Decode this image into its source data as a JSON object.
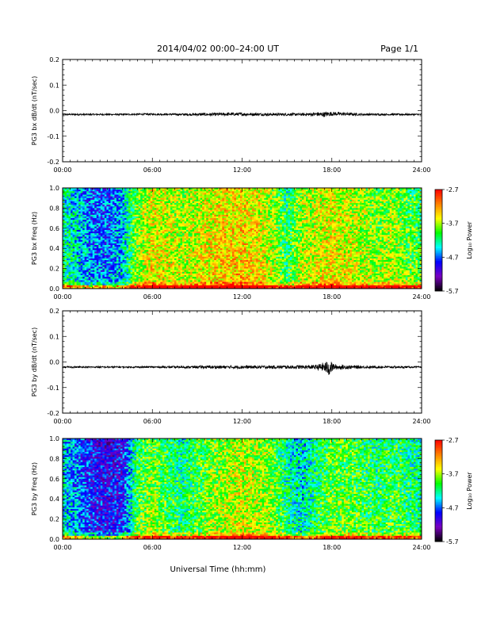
{
  "header": {
    "title": "2014/04/02  00:00–24:00 UT",
    "page": "Page 1/1"
  },
  "xaxis": {
    "label": "Universal Time (hh:mm)",
    "ticks": [
      "00:00",
      "06:00",
      "12:00",
      "18:00",
      "24:00"
    ],
    "range_hours": [
      0,
      24
    ]
  },
  "colorbar": {
    "label": "Log₁₀ Power",
    "ticks": [
      "-2.7",
      "-3.7",
      "-4.7",
      "-5.7"
    ],
    "range": [
      -5.7,
      -2.7
    ],
    "colors": [
      "#000000",
      "#7a00c0",
      "#0000ff",
      "#00ffff",
      "#00ff00",
      "#ffff00",
      "#ff8000",
      "#ff0000"
    ]
  },
  "chart_data": [
    {
      "type": "line",
      "ylabel": "PG3 bx dB/dt (nT/sec)",
      "ylim": [
        -0.2,
        0.2
      ],
      "yticks": [
        "0.2",
        "0.1",
        "0.0",
        "-0.1",
        "-0.2"
      ],
      "x_hours": [
        0,
        2,
        4,
        6,
        8,
        10,
        11,
        12,
        14,
        16,
        17,
        17.5,
        18,
        20,
        22,
        24
      ],
      "y": [
        -0.015,
        -0.015,
        -0.015,
        -0.014,
        -0.015,
        -0.015,
        -0.014,
        -0.014,
        -0.015,
        -0.015,
        -0.014,
        -0.015,
        -0.012,
        -0.015,
        -0.015,
        -0.015
      ],
      "noise_amp_hours": [
        0,
        4,
        8,
        10,
        12,
        14,
        16,
        17,
        17.5,
        18,
        20,
        24
      ],
      "noise_amp": [
        0.003,
        0.003,
        0.004,
        0.006,
        0.006,
        0.005,
        0.005,
        0.008,
        0.01,
        0.008,
        0.004,
        0.003
      ]
    },
    {
      "type": "heatmap",
      "ylabel": "PG3 bx Freq (Hz)",
      "ylim": [
        0,
        1
      ],
      "yticks": [
        "1.0",
        "0.8",
        "0.6",
        "0.4",
        "0.2",
        "0.0"
      ],
      "zlim": [
        -5.7,
        -2.7
      ],
      "activity_hours": [
        0,
        1,
        2,
        3,
        4,
        5,
        6,
        7,
        8,
        9,
        10,
        11,
        12,
        13,
        14,
        15,
        16,
        17,
        18,
        19,
        20,
        21,
        22,
        23,
        24
      ],
      "activity_log_power": [
        -4.2,
        -4.4,
        -4.7,
        -4.7,
        -4.5,
        -3.8,
        -3.5,
        -3.6,
        -3.7,
        -3.6,
        -3.5,
        -3.4,
        -3.4,
        -3.5,
        -3.7,
        -4.1,
        -3.7,
        -3.6,
        -3.5,
        -3.6,
        -3.7,
        -3.8,
        -3.7,
        -3.9,
        -4.0
      ]
    },
    {
      "type": "line",
      "ylabel": "PG3 by dB/dt (nT/sec)",
      "ylim": [
        -0.2,
        0.2
      ],
      "yticks": [
        "0.2",
        "0.1",
        "0.0",
        "-0.1",
        "-0.2"
      ],
      "x_hours": [
        0,
        2,
        4,
        6,
        8,
        10,
        12,
        14,
        16,
        17,
        17.5,
        17.8,
        18,
        20,
        22,
        24
      ],
      "y": [
        -0.02,
        -0.02,
        -0.02,
        -0.02,
        -0.02,
        -0.02,
        -0.02,
        -0.02,
        -0.02,
        -0.02,
        -0.02,
        -0.025,
        -0.02,
        -0.02,
        -0.02,
        -0.02
      ],
      "noise_amp_hours": [
        0,
        4,
        8,
        10,
        12,
        14,
        16,
        17,
        17.5,
        17.8,
        18.2,
        20,
        24
      ],
      "noise_amp": [
        0.003,
        0.003,
        0.004,
        0.006,
        0.006,
        0.006,
        0.007,
        0.009,
        0.02,
        0.03,
        0.01,
        0.005,
        0.003
      ]
    },
    {
      "type": "heatmap",
      "ylabel": "PG3 by Freq (Hz)",
      "ylim": [
        0,
        1
      ],
      "yticks": [
        "1.0",
        "0.8",
        "0.6",
        "0.4",
        "0.2",
        "0.0"
      ],
      "zlim": [
        -5.7,
        -2.7
      ],
      "activity_hours": [
        0,
        1,
        2,
        3,
        4,
        5,
        6,
        7,
        8,
        9,
        10,
        11,
        12,
        13,
        14,
        15,
        16,
        17,
        18,
        19,
        20,
        21,
        22,
        23,
        24
      ],
      "activity_log_power": [
        -4.4,
        -4.6,
        -4.9,
        -5.0,
        -4.9,
        -4.0,
        -3.8,
        -4.0,
        -4.2,
        -4.0,
        -3.8,
        -3.7,
        -3.6,
        -3.7,
        -3.8,
        -4.2,
        -4.4,
        -4.1,
        -3.9,
        -3.9,
        -4.0,
        -4.1,
        -4.0,
        -4.1,
        -4.2
      ]
    }
  ]
}
